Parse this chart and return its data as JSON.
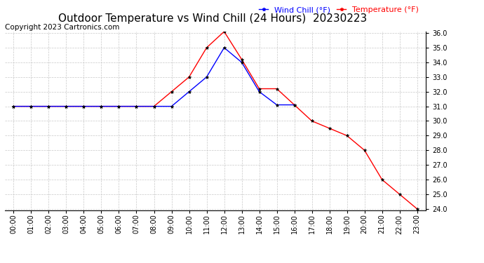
{
  "title": "Outdoor Temperature vs Wind Chill (24 Hours)  20230223",
  "copyright": "Copyright 2023 Cartronics.com",
  "legend_wind_chill": "Wind Chill (°F)",
  "legend_temperature": "Temperature (°F)",
  "hours": [
    "00:00",
    "01:00",
    "02:00",
    "03:00",
    "04:00",
    "05:00",
    "06:00",
    "07:00",
    "08:00",
    "09:00",
    "10:00",
    "11:00",
    "12:00",
    "13:00",
    "14:00",
    "15:00",
    "16:00",
    "17:00",
    "18:00",
    "19:00",
    "20:00",
    "21:00",
    "22:00",
    "23:00"
  ],
  "temperature": [
    31.0,
    31.0,
    31.0,
    31.0,
    31.0,
    31.0,
    31.0,
    31.0,
    31.0,
    32.0,
    33.0,
    35.0,
    36.1,
    34.2,
    32.2,
    32.2,
    31.1,
    30.0,
    29.5,
    29.0,
    28.0,
    26.0,
    25.0,
    24.0
  ],
  "wind_chill": [
    31.0,
    31.0,
    31.0,
    31.0,
    31.0,
    31.0,
    31.0,
    31.0,
    31.0,
    31.0,
    32.0,
    33.0,
    35.0,
    34.0,
    32.0,
    31.1,
    31.1,
    null,
    null,
    null,
    null,
    null,
    null,
    null
  ],
  "temperature_color": "#ff0000",
  "wind_chill_color": "#0000ff",
  "background_color": "#ffffff",
  "grid_color": "#c8c8c8",
  "ylim_min": 24.0,
  "ylim_max": 36.0,
  "ytick_interval": 1.0,
  "title_fontsize": 11,
  "legend_fontsize": 8,
  "copyright_fontsize": 7.5,
  "tick_fontsize": 7
}
